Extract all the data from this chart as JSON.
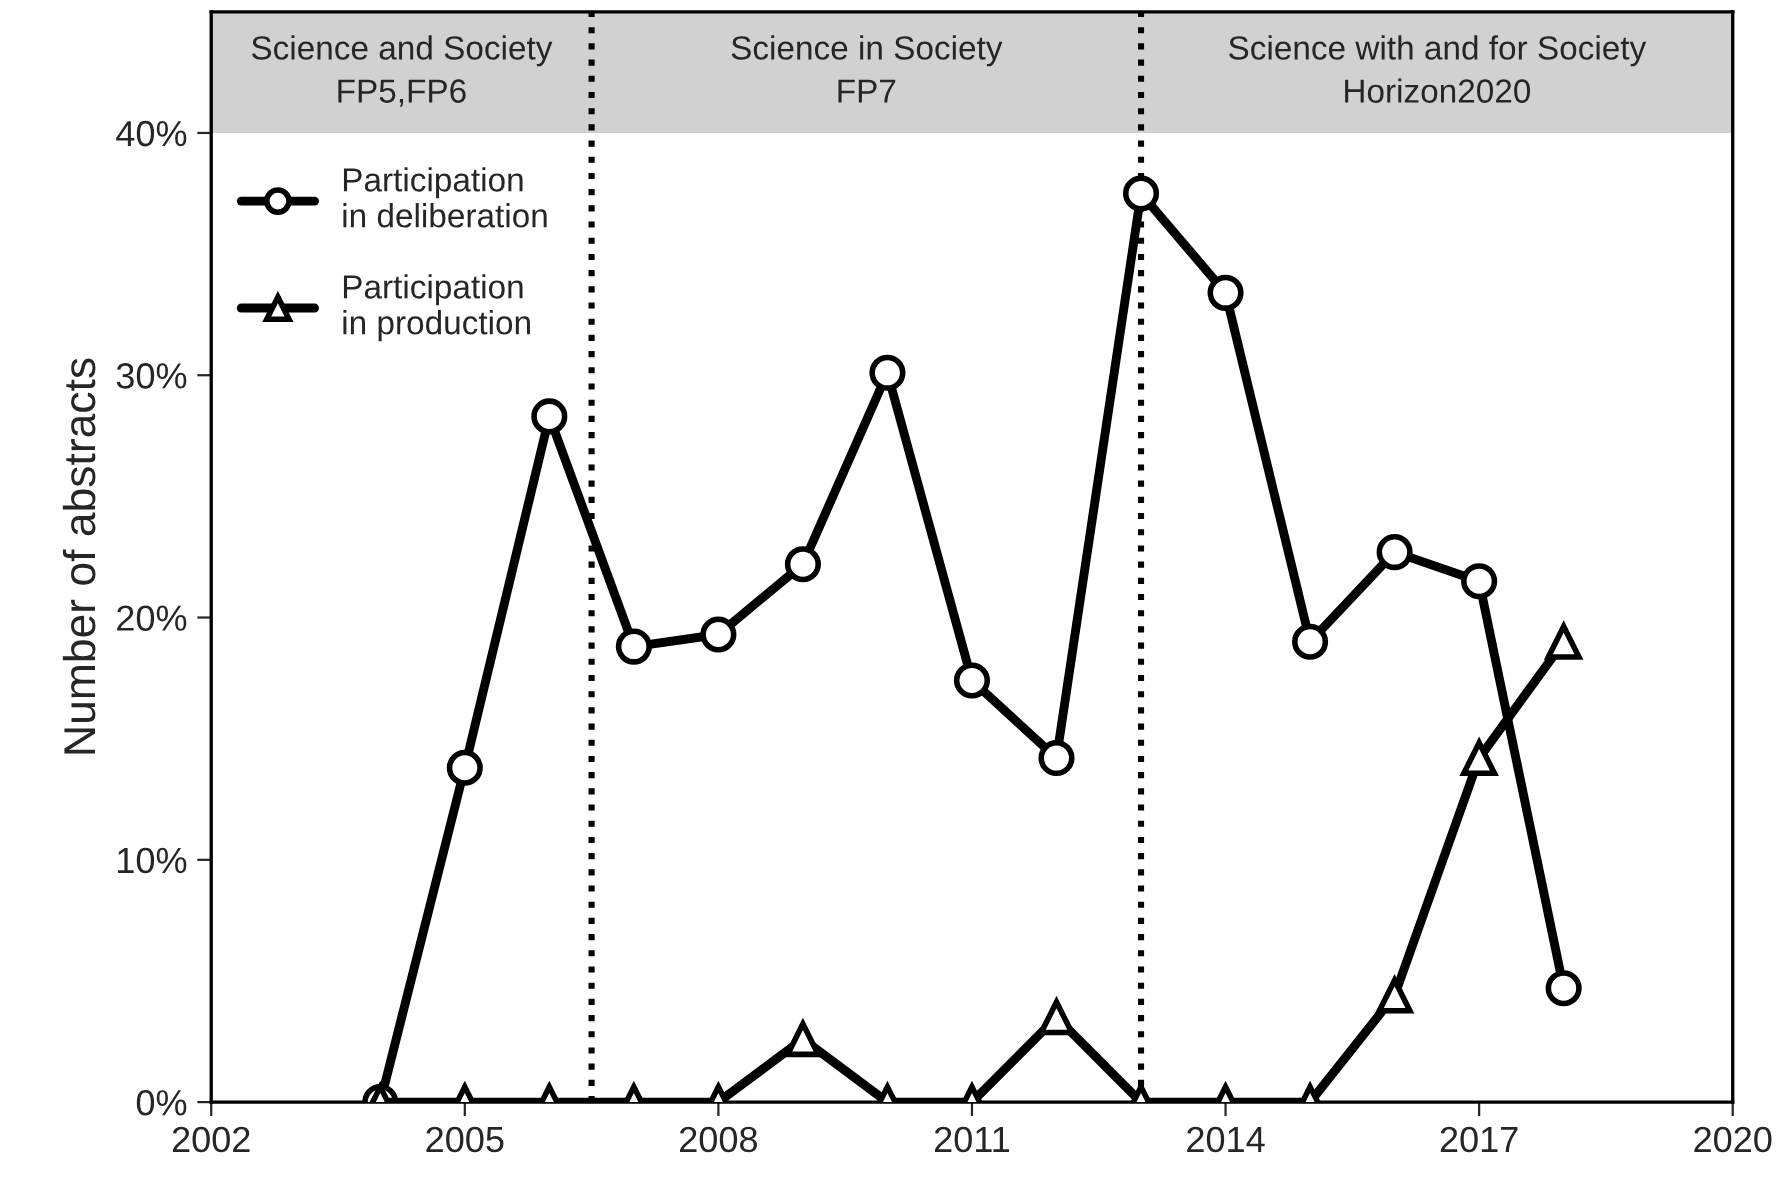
{
  "chart_data": {
    "type": "line",
    "ylabel": "Number of abstracts",
    "x": [
      2004,
      2005,
      2006,
      2007,
      2008,
      2009,
      2010,
      2011,
      2012,
      2013,
      2014,
      2015,
      2016,
      2017,
      2018
    ],
    "series": [
      {
        "name": "Participation\nin deliberation",
        "color": "#000000",
        "marker": "circle",
        "values": [
          0,
          13.8,
          28.3,
          18.8,
          19.3,
          22.2,
          30.1,
          17.4,
          14.2,
          37.5,
          33.4,
          19.0,
          22.7,
          21.5,
          4.7
        ]
      },
      {
        "name": "Participation\nin production",
        "color": "#000000",
        "marker": "triangle",
        "values": [
          0,
          0,
          0,
          0,
          0,
          2.6,
          0,
          0,
          3.5,
          0,
          0,
          0,
          4.4,
          14.2,
          19.0
        ]
      }
    ],
    "xlim": [
      2002,
      2020
    ],
    "xticks": [
      2002,
      2005,
      2008,
      2011,
      2014,
      2017,
      2020
    ],
    "ylim": [
      0,
      45
    ],
    "yticks": [
      {
        "value": 0,
        "label": "0%"
      },
      {
        "value": 10,
        "label": "10%"
      },
      {
        "value": 20,
        "label": "20%"
      },
      {
        "value": 30,
        "label": "30%"
      },
      {
        "value": 40,
        "label": "40%"
      }
    ],
    "bands": [
      {
        "axis": "y",
        "from": 40,
        "to": 45,
        "color": "#d0d1d0"
      }
    ],
    "ref_lines": [
      {
        "axis": "x",
        "value": 2006.5,
        "line_style": "dotted",
        "color": "#000000"
      },
      {
        "axis": "x",
        "value": 2013,
        "line_style": "dotted",
        "color": "#000000"
      }
    ],
    "annotations": [
      "Science and Society\nFP5,FP6",
      "Science in Society\nFP7",
      "Science with and for Society\nHorizon2020"
    ],
    "legend": "top left",
    "grid": false,
    "line_style": "solid"
  }
}
